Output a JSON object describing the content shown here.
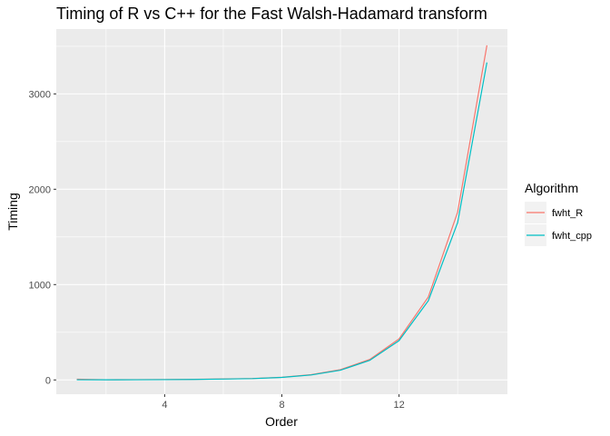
{
  "chart_data": {
    "type": "line",
    "title": "Timing of R vs C++ for the Fast Walsh-Hadamard transform",
    "xlabel": "Order",
    "ylabel": "Timing",
    "x": [
      1,
      2,
      3,
      4,
      5,
      6,
      7,
      8,
      9,
      10,
      11,
      12,
      13,
      14,
      15
    ],
    "xlim": [
      0.3,
      15.7
    ],
    "ylim": [
      -150,
      3680
    ],
    "xticks": [
      4,
      8,
      12
    ],
    "yticks": [
      0,
      1000,
      2000,
      3000
    ],
    "grid": true,
    "legend": {
      "title": "Algorithm",
      "position": "right"
    },
    "series": [
      {
        "name": "fwht_R",
        "color": "#F8766D",
        "values": [
          8,
          2,
          3,
          4,
          6,
          10,
          15,
          28,
          55,
          108,
          215,
          430,
          870,
          1760,
          3510
        ]
      },
      {
        "name": "fwht_cpp",
        "color": "#00BFC4",
        "values": [
          2,
          1,
          2,
          3,
          5,
          9,
          14,
          26,
          52,
          102,
          205,
          412,
          830,
          1650,
          3330
        ]
      }
    ]
  }
}
